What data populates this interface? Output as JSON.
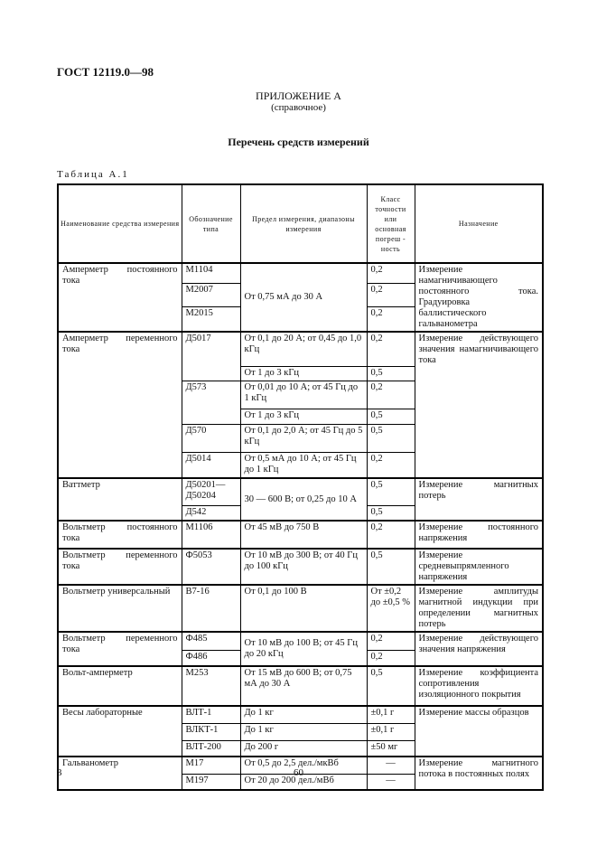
{
  "header": {
    "doc_code": "ГОСТ 12119.0—98"
  },
  "appendix": {
    "title": "ПРИЛОЖЕНИЕ А",
    "note": "(справочное)"
  },
  "list_title": "Перечень средств измерений",
  "table_caption": "Таблица А.1",
  "table": {
    "columns": [
      "Наименование средства измерения",
      "Обозначение типа",
      "Предел измерения, диапазоны измерения",
      "Класс точности или основная погреш - ность",
      "Назначение"
    ],
    "rows": [
      [
        "Амперметр постоянного тока",
        "М1104",
        "От 0,75 мА до 30 А",
        "0,2",
        "Измерение намагничивающего постоянного тока. Градуировка баллистического гальванометра"
      ],
      [
        "М2007",
        "0,2"
      ],
      [
        "М2015",
        "0,2"
      ],
      [
        "Амперметр переменного тока",
        "Д5017",
        "От 0,1 до 20 А; от 0,45 до 1,0 кГц",
        "0,2",
        "Измерение действующего значения намагничивающего тока"
      ],
      [
        "От 1 до 3 кГц",
        "0,5"
      ],
      [
        "Д573",
        "От 0,01 до 10 А; от 45 Гц до 1 кГц",
        "0,2"
      ],
      [
        "От 1 до 3 кГц",
        "0,5"
      ],
      [
        "Д570",
        "От 0,1 до 2,0 А; от 45 Гц до 5 кГц",
        "0,5"
      ],
      [
        "Д5014",
        "От 0,5 мА до 10 А; от 45 Гц до 1 кГц",
        "0,2"
      ],
      [
        "Ваттметр",
        "Д50201— Д50204",
        "30 — 600 В; от 0,25 до 10 А",
        "0,5",
        "Измерение магнитных потерь"
      ],
      [
        "Д542",
        "0,5"
      ],
      [
        "Вольтметр постоянного тока",
        "М1106",
        "От 45 мВ до 750 В",
        "0,2",
        "Измерение постоянного напряжения"
      ],
      [
        "Вольтметр переменного тока",
        "Ф5053",
        "От 10 мВ до 300 В; от 40 Гц до 100 кГц",
        "0,5",
        "Измерение средневыпрямленного напряжения"
      ],
      [
        "Вольтметр универсальный",
        "В7-16",
        "От 0,1 до 100 В",
        "От ±0,2 до ±0,5 %",
        "Измерение амплитуды магнитной индукции при определении магнитных потерь"
      ],
      [
        "Вольтметр переменного тока",
        "Ф485",
        "От 10 мВ до 100 В; от 45 Гц до 20 кГц",
        "0,2",
        "Измерение действующего значения напряжения"
      ],
      [
        "Ф486",
        "0,2"
      ],
      [
        "Вольт-амперметр",
        "М253",
        "От 15 мВ до 600 В; от 0,75 мА до 30 А",
        "0,5",
        "Измерение коэффициента сопротивления изоляционного покрытия"
      ],
      [
        "Весы лабораторные",
        "ВЛТ-1",
        "До 1 кг",
        "±0,1 г",
        "Измерение массы образцов"
      ],
      [
        "ВЛКТ-1",
        "До 1 кг",
        "±0,1 г"
      ],
      [
        "ВЛТ-200",
        "До 200 г",
        "±50 мг"
      ],
      [
        "Гальванометр",
        "М17",
        "От 0,5 до 2,5 дел./мкВб",
        "—",
        "Измерение магнитного потока в постоянных полях"
      ],
      [
        "М197",
        "От 20 до 200 дел./мВб",
        "—"
      ]
    ]
  },
  "footer": {
    "left": "3",
    "page": "60"
  }
}
